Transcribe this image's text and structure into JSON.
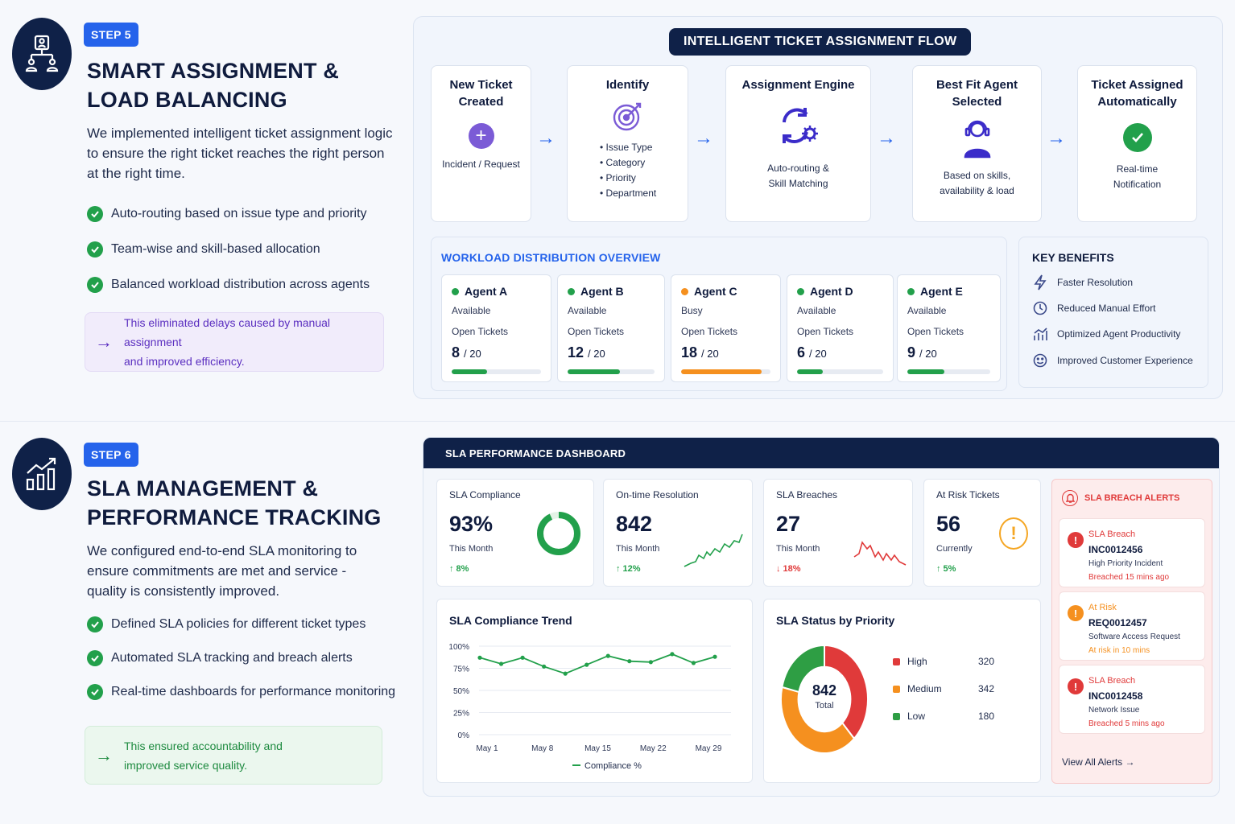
{
  "step5": {
    "badge": "STEP 5",
    "title_line1": "SMART ASSIGNMENT &",
    "title_line2": "LOAD BALANCING",
    "desc_line1": "We implemented intelligent ticket assignment logic",
    "desc_line2": "to ensure the right ticket reaches the right person",
    "desc_line3": "at the right time.",
    "bullets": [
      "Auto-routing based on issue type and priority",
      "Team-wise and skill-based allocation",
      "Balanced workload distribution across agents"
    ],
    "note_line1": "This eliminated delays caused by manual assignment",
    "note_line2": "and improved efficiency."
  },
  "flow": {
    "title": "INTELLIGENT TICKET ASSIGNMENT FLOW",
    "cards": [
      {
        "title_l1": "New Ticket",
        "title_l2": "Created",
        "sub_l1": "Incident / Request",
        "sub_l2": ""
      },
      {
        "title_l1": "Identify",
        "title_l2": "",
        "items": [
          "Issue Type",
          "Category",
          "Priority",
          "Department"
        ]
      },
      {
        "title_l1": "Assignment Engine",
        "title_l2": "",
        "sub_l1": "Auto-routing &",
        "sub_l2": "Skill Matching"
      },
      {
        "title_l1": "Best Fit Agent",
        "title_l2": "Selected",
        "sub_l1": "Based on skills,",
        "sub_l2": "availability & load"
      },
      {
        "title_l1": "Ticket Assigned",
        "title_l2": "Automatically",
        "sub_l1": "Real-time",
        "sub_l2": "Notification"
      }
    ],
    "arrow": "→"
  },
  "workload": {
    "title": "WORKLOAD DISTRIBUTION OVERVIEW",
    "open_label": "Open Tickets",
    "agents": [
      {
        "name": "Agent A",
        "status": "Available",
        "count": "8",
        "max": "/ 20",
        "fraction": 0.4,
        "color": "#22a04b"
      },
      {
        "name": "Agent B",
        "status": "Available",
        "count": "12",
        "max": "/ 20",
        "fraction": 0.6,
        "color": "#22a04b"
      },
      {
        "name": "Agent C",
        "status": "Busy",
        "count": "18",
        "max": "/ 20",
        "fraction": 0.9,
        "color": "#f5901f"
      },
      {
        "name": "Agent D",
        "status": "Available",
        "count": "6",
        "max": "/ 20",
        "fraction": 0.3,
        "color": "#22a04b"
      },
      {
        "name": "Agent E",
        "status": "Available",
        "count": "9",
        "max": "/ 20",
        "fraction": 0.45,
        "color": "#22a04b"
      }
    ]
  },
  "benefits": {
    "title": "KEY BENEFITS",
    "items": [
      {
        "label": "Faster Resolution",
        "icon": "lightning-icon"
      },
      {
        "label": "Reduced Manual Effort",
        "icon": "clock-icon"
      },
      {
        "label": "Optimized Agent Productivity",
        "icon": "chart-icon"
      },
      {
        "label": "Improved Customer Experience",
        "icon": "smile-icon"
      }
    ]
  },
  "step6": {
    "badge": "STEP 6",
    "title_line1": "SLA MANAGEMENT &",
    "title_line2": "PERFORMANCE TRACKING",
    "desc_line1": "We configured end-to-end SLA monitoring to",
    "desc_line2": "ensure commitments are met and service -",
    "desc_line3": "quality is consistently improved.",
    "bullets": [
      "Defined SLA policies for different ticket types",
      "Automated SLA tracking and breach alerts",
      "Real-time dashboards for performance monitoring"
    ],
    "note_line1": "This ensured accountability and",
    "note_line2": "improved service quality."
  },
  "dashboard": {
    "title": "SLA PERFORMANCE DASHBOARD",
    "kpis": [
      {
        "label": "SLA Compliance",
        "value": "93%",
        "sub": "This Month",
        "change": "↑ 8%",
        "change_color": "#22a04b",
        "ring_fraction": 0.93
      },
      {
        "label": "On-time Resolution",
        "value": "842",
        "sub": "This Month",
        "change": "↑ 12%",
        "change_color": "#22a04b"
      },
      {
        "label": "SLA Breaches",
        "value": "27",
        "sub": "This Month",
        "change": "↓ 18%",
        "change_color": "#e03a3a"
      },
      {
        "label": "At Risk Tickets",
        "value": "56",
        "sub": "Currently",
        "change": "↑ 5%",
        "change_color": "#22a04b"
      }
    ],
    "alerts": {
      "title": "SLA BREACH ALERTS",
      "items": [
        {
          "type": "SLA Breach",
          "id": "INC0012456",
          "desc": "High Priority Incident",
          "time": "Breached 15 mins ago",
          "color": "#e03a3a"
        },
        {
          "type": "At Risk",
          "id": "REQ0012457",
          "desc": "Software Access Request",
          "time": "At risk in 10 mins",
          "color": "#f5901f"
        },
        {
          "type": "SLA Breach",
          "id": "INC0012458",
          "desc": "Network Issue",
          "time": "Breached 5 mins ago",
          "color": "#e03a3a"
        }
      ],
      "view_all": "View All Alerts →"
    }
  },
  "chart_data": [
    {
      "type": "line",
      "title": "SLA Compliance Trend",
      "x_ticks": [
        "May 1",
        "May 8",
        "May 15",
        "May 22",
        "May 29"
      ],
      "y_ticks": [
        "100%",
        "75%",
        "50%",
        "25%",
        "0%"
      ],
      "ylim": [
        0,
        100
      ],
      "series": [
        {
          "name": "Compliance %",
          "values": [
            87,
            80,
            87,
            77,
            69,
            79,
            89,
            83,
            82,
            91,
            81,
            88
          ],
          "color": "#22a04b"
        }
      ],
      "legend": "bottom"
    },
    {
      "type": "pie",
      "title": "SLA Status by Priority",
      "center_value": "842",
      "center_label": "Total",
      "slices": [
        {
          "label": "High",
          "value": 320,
          "color": "#e03a3a"
        },
        {
          "label": "Medium",
          "value": 342,
          "color": "#f5901f"
        },
        {
          "label": "Low",
          "value": 180,
          "color": "#2e9e44"
        }
      ]
    }
  ]
}
